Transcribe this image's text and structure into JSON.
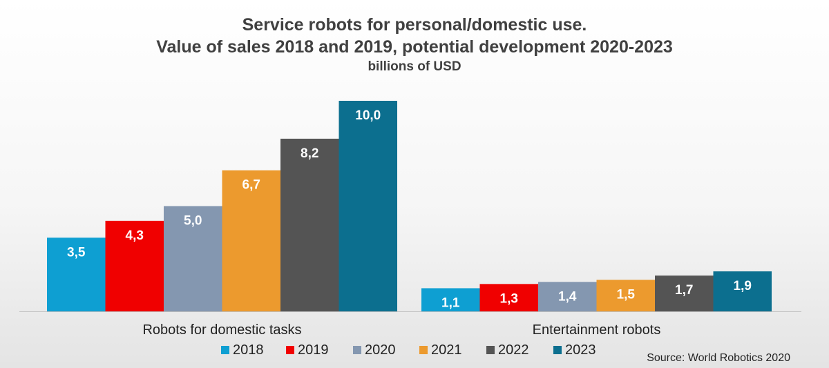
{
  "title_line1": "Service robots for personal/domestic use.",
  "title_line2": "Value of sales 2018 and 2019, potential development 2020-2023",
  "subtitle": "billions of USD",
  "source": "Source: World Robotics 2020",
  "chart_data": {
    "type": "bar",
    "title": "Service robots for personal/domestic use. Value of sales 2018 and 2019, potential development 2020-2023",
    "subtitle": "billions of USD",
    "categories": [
      "Robots for domestic tasks",
      "Entertainment robots"
    ],
    "series": [
      {
        "name": "2018",
        "color": "#0e9fd2",
        "values": [
          3.5,
          1.1
        ],
        "labels": [
          "3,5",
          "1,1"
        ]
      },
      {
        "name": "2019",
        "color": "#f00000",
        "values": [
          4.3,
          1.3
        ],
        "labels": [
          "4,3",
          "1,3"
        ]
      },
      {
        "name": "2020",
        "color": "#8497b0",
        "values": [
          5.0,
          1.4
        ],
        "labels": [
          "5,0",
          "1,4"
        ]
      },
      {
        "name": "2021",
        "color": "#ec9a2e",
        "values": [
          6.7,
          1.5
        ],
        "labels": [
          "6,7",
          "1,5"
        ]
      },
      {
        "name": "2022",
        "color": "#545454",
        "values": [
          8.2,
          1.7
        ],
        "labels": [
          "8,2",
          "1,7"
        ]
      },
      {
        "name": "2023",
        "color": "#0c6f8f",
        "values": [
          10.0,
          1.9
        ],
        "labels": [
          "10,0",
          "1,9"
        ]
      }
    ],
    "ylim": [
      0,
      10.0
    ],
    "grid": false,
    "legend": "bottom"
  }
}
